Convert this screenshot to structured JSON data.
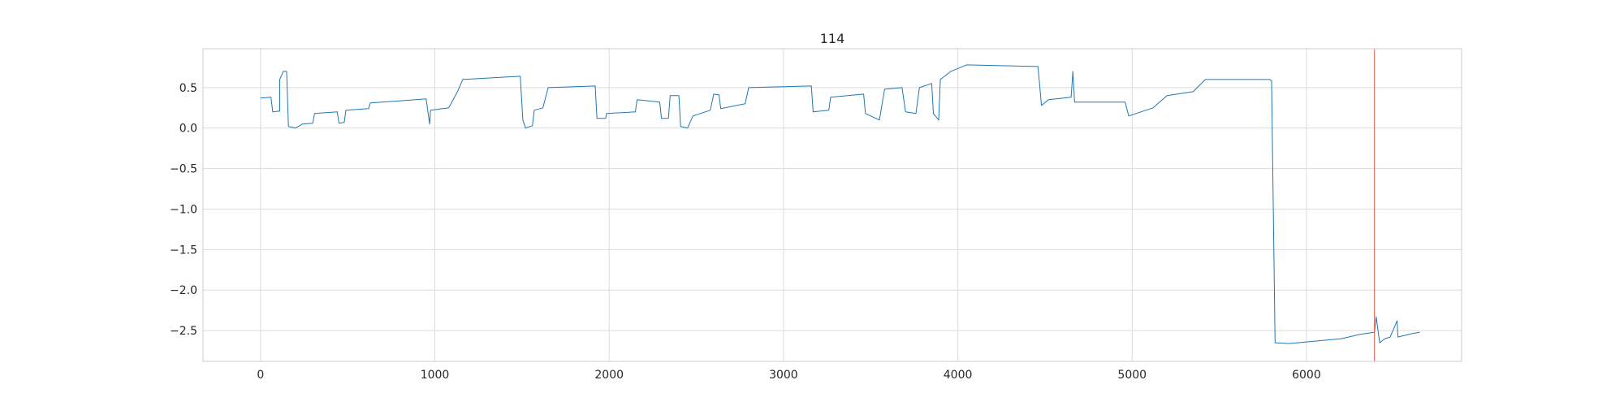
{
  "chart_data": {
    "type": "line",
    "title": "114",
    "xlabel": "",
    "ylabel": "",
    "xlim": [
      -330,
      6890
    ],
    "ylim": [
      -2.88,
      0.98
    ],
    "grid": true,
    "xticks": [
      {
        "value": 0,
        "label": "0"
      },
      {
        "value": 1000,
        "label": "1000"
      },
      {
        "value": 2000,
        "label": "2000"
      },
      {
        "value": 3000,
        "label": "3000"
      },
      {
        "value": 4000,
        "label": "4000"
      },
      {
        "value": 5000,
        "label": "5000"
      },
      {
        "value": 6000,
        "label": "6000"
      }
    ],
    "yticks": [
      {
        "value": 0.5,
        "label": "0.5"
      },
      {
        "value": 0.0,
        "label": "0.0"
      },
      {
        "value": -0.5,
        "label": "−0.5"
      },
      {
        "value": -1.0,
        "label": "−1.0"
      },
      {
        "value": -1.5,
        "label": "−1.5"
      },
      {
        "value": -2.0,
        "label": "−2.0"
      },
      {
        "value": -2.5,
        "label": "−2.5"
      }
    ],
    "series": [
      {
        "color": "#1f77b4",
        "points": [
          [
            0,
            0.37
          ],
          [
            60,
            0.38
          ],
          [
            70,
            0.2
          ],
          [
            110,
            0.21
          ],
          [
            110,
            0.6
          ],
          [
            130,
            0.7
          ],
          [
            150,
            0.7
          ],
          [
            160,
            0.02
          ],
          [
            200,
            0.0
          ],
          [
            240,
            0.05
          ],
          [
            300,
            0.06
          ],
          [
            310,
            0.18
          ],
          [
            440,
            0.2
          ],
          [
            450,
            0.06
          ],
          [
            480,
            0.07
          ],
          [
            490,
            0.22
          ],
          [
            620,
            0.24
          ],
          [
            630,
            0.31
          ],
          [
            950,
            0.36
          ],
          [
            970,
            0.05
          ],
          [
            975,
            0.22
          ],
          [
            1080,
            0.25
          ],
          [
            1130,
            0.45
          ],
          [
            1160,
            0.6
          ],
          [
            1490,
            0.64
          ],
          [
            1505,
            0.1
          ],
          [
            1520,
            0.0
          ],
          [
            1560,
            0.03
          ],
          [
            1570,
            0.22
          ],
          [
            1620,
            0.25
          ],
          [
            1650,
            0.5
          ],
          [
            1920,
            0.52
          ],
          [
            1930,
            0.12
          ],
          [
            1980,
            0.12
          ],
          [
            1985,
            0.18
          ],
          [
            2150,
            0.2
          ],
          [
            2160,
            0.35
          ],
          [
            2290,
            0.32
          ],
          [
            2300,
            0.12
          ],
          [
            2340,
            0.12
          ],
          [
            2350,
            0.4
          ],
          [
            2400,
            0.4
          ],
          [
            2410,
            0.02
          ],
          [
            2450,
            0.0
          ],
          [
            2480,
            0.15
          ],
          [
            2580,
            0.22
          ],
          [
            2600,
            0.42
          ],
          [
            2630,
            0.41
          ],
          [
            2640,
            0.24
          ],
          [
            2780,
            0.3
          ],
          [
            2800,
            0.5
          ],
          [
            3160,
            0.52
          ],
          [
            3170,
            0.2
          ],
          [
            3260,
            0.22
          ],
          [
            3270,
            0.38
          ],
          [
            3460,
            0.42
          ],
          [
            3470,
            0.18
          ],
          [
            3550,
            0.1
          ],
          [
            3580,
            0.48
          ],
          [
            3680,
            0.5
          ],
          [
            3700,
            0.2
          ],
          [
            3760,
            0.18
          ],
          [
            3780,
            0.5
          ],
          [
            3850,
            0.55
          ],
          [
            3860,
            0.18
          ],
          [
            3890,
            0.1
          ],
          [
            3900,
            0.6
          ],
          [
            3960,
            0.7
          ],
          [
            4050,
            0.78
          ],
          [
            4460,
            0.76
          ],
          [
            4480,
            0.28
          ],
          [
            4520,
            0.35
          ],
          [
            4650,
            0.38
          ],
          [
            4660,
            0.7
          ],
          [
            4670,
            0.32
          ],
          [
            4960,
            0.32
          ],
          [
            4980,
            0.15
          ],
          [
            5120,
            0.25
          ],
          [
            5200,
            0.4
          ],
          [
            5350,
            0.45
          ],
          [
            5420,
            0.6
          ],
          [
            5790,
            0.6
          ],
          [
            5800,
            0.58
          ],
          [
            5820,
            -2.65
          ],
          [
            5900,
            -2.66
          ],
          [
            6200,
            -2.6
          ],
          [
            6300,
            -2.55
          ],
          [
            6390,
            -2.52
          ],
          [
            6400,
            -2.33
          ],
          [
            6420,
            -2.65
          ],
          [
            6450,
            -2.6
          ],
          [
            6480,
            -2.58
          ],
          [
            6520,
            -2.38
          ],
          [
            6525,
            -2.58
          ],
          [
            6600,
            -2.54
          ],
          [
            6650,
            -2.52
          ]
        ]
      }
    ],
    "vlines": [
      {
        "x": 6390,
        "color": "#e8574a"
      }
    ]
  }
}
